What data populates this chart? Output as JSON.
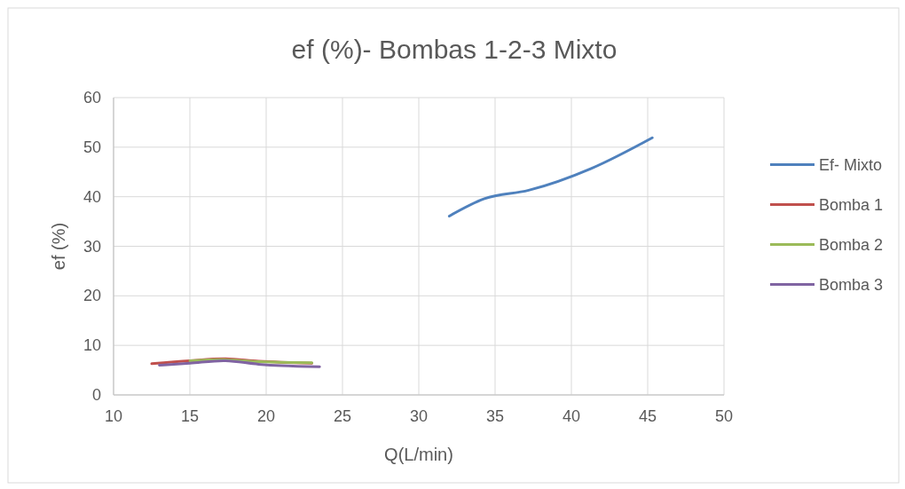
{
  "chart_data": {
    "type": "line",
    "title": "ef (%)- Bombas 1-2-3 Mixto",
    "xlabel": "Q(L/min)",
    "ylabel": "ef (%)",
    "xlim": [
      10,
      50
    ],
    "xticks": [
      10,
      15,
      20,
      25,
      30,
      35,
      40,
      45,
      50
    ],
    "ylim": [
      0,
      60
    ],
    "yticks": [
      0,
      10,
      20,
      30,
      40,
      50,
      60
    ],
    "grid": true,
    "legend": "right",
    "marker": "none",
    "series": [
      {
        "name": "Ef- Mixto",
        "color": "#4f81bd",
        "x": [
          32.0,
          34.3,
          37.2,
          41.3,
          45.3
        ],
        "values": [
          36.1,
          39.6,
          41.3,
          45.7,
          51.9
        ]
      },
      {
        "name": "Bomba 1",
        "color": "#c0504d",
        "x": [
          12.5,
          15,
          17.2,
          19.5,
          23
        ],
        "values": [
          6.3,
          6.9,
          7.3,
          6.8,
          6.4
        ]
      },
      {
        "name": "Bomba 2",
        "color": "#9bbb59",
        "x": [
          15,
          17.2,
          19.5,
          23
        ],
        "values": [
          6.9,
          7.1,
          6.7,
          6.5
        ]
      },
      {
        "name": "Bomba 3",
        "color": "#8064a2",
        "x": [
          13,
          15,
          17.2,
          19.5,
          21,
          23.5
        ],
        "values": [
          6.0,
          6.4,
          6.9,
          6.2,
          5.9,
          5.7
        ]
      }
    ]
  }
}
